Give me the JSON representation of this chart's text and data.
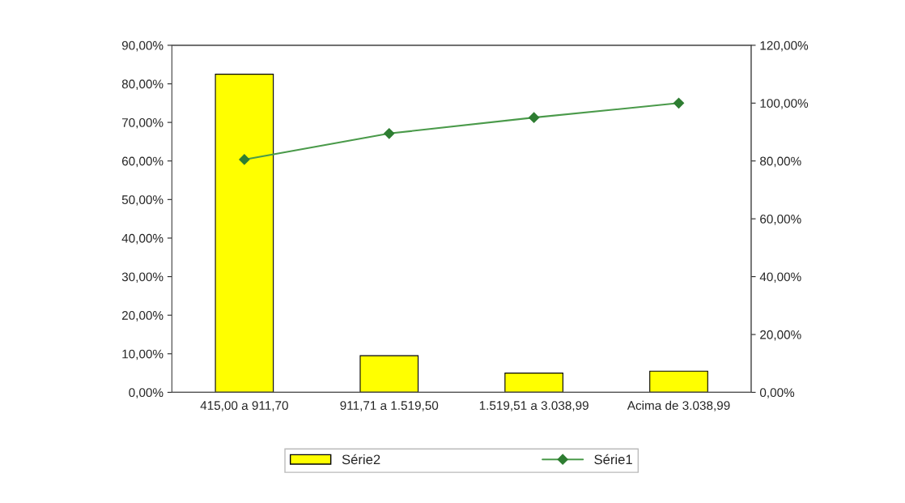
{
  "chart_data": {
    "type": "bar",
    "categories": [
      "415,00 a 911,70",
      "911,71 a 1.519,50",
      "1.519,51 a 3.038,99",
      "Acima de 3.038,99"
    ],
    "series": [
      {
        "name": "Série2",
        "color": "#ffff00",
        "values": [
          82.5,
          9.5,
          5.0,
          5.5
        ]
      },
      {
        "name": "Série1",
        "type": "line",
        "axis": "y2",
        "color": "#4a9a4a",
        "marker": "diamond",
        "values": [
          80.5,
          89.5,
          95.0,
          100.0
        ]
      }
    ],
    "ylim": [
      0,
      90
    ],
    "yticks": [
      {
        "value": 0,
        "label": "0,00%"
      },
      {
        "value": 10,
        "label": "10,00%"
      },
      {
        "value": 20,
        "label": "20,00%"
      },
      {
        "value": 30,
        "label": "30,00%"
      },
      {
        "value": 40,
        "label": "40,00%"
      },
      {
        "value": 50,
        "label": "50,00%"
      },
      {
        "value": 60,
        "label": "60,00%"
      },
      {
        "value": 70,
        "label": "70,00%"
      },
      {
        "value": 80,
        "label": "80,00%"
      },
      {
        "value": 90,
        "label": "90,00%"
      }
    ],
    "y2lim": [
      0,
      120
    ],
    "y2ticks": [
      {
        "value": 0,
        "label": "0,00%"
      },
      {
        "value": 20,
        "label": "20,00%"
      },
      {
        "value": 40,
        "label": "40,00%"
      },
      {
        "value": 60,
        "label": "60,00%"
      },
      {
        "value": 80,
        "label": "80,00%"
      },
      {
        "value": 100,
        "label": "100,00%"
      },
      {
        "value": 120,
        "label": "120,00%"
      }
    ],
    "grid": false,
    "legend": "bottom"
  }
}
